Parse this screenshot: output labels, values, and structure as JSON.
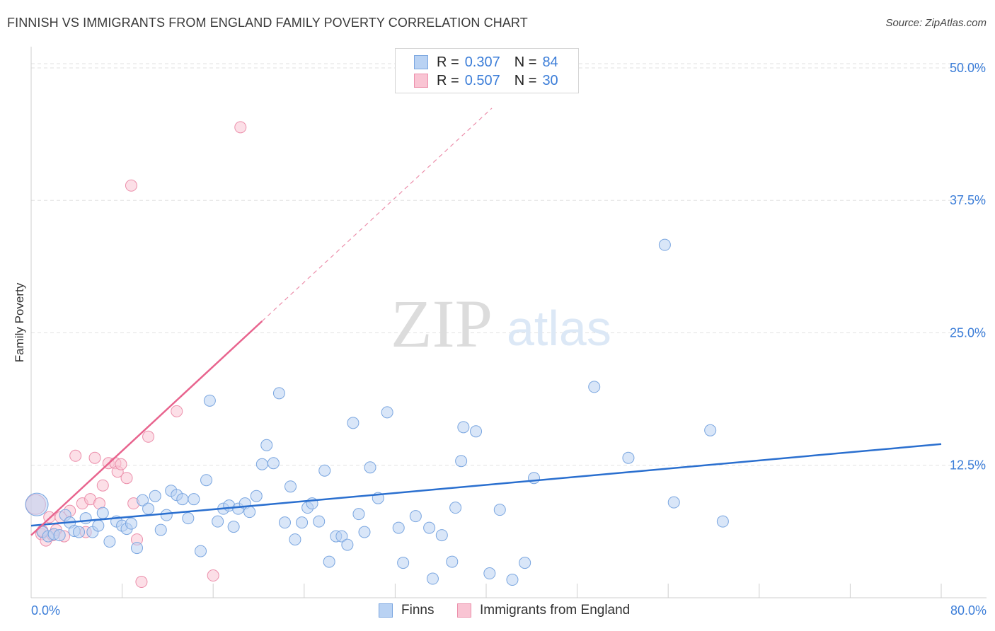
{
  "title": "FINNISH VS IMMIGRANTS FROM ENGLAND FAMILY POVERTY CORRELATION CHART",
  "source": "Source: ZipAtlas.com",
  "watermark": {
    "part1": "ZIP",
    "part2": "atlas"
  },
  "colors": {
    "finns_fill": "#b9d2f3",
    "finns_stroke": "#7aa6e0",
    "finns_line": "#2a6fcf",
    "eng_fill": "#f9c4d3",
    "eng_stroke": "#ec8fab",
    "eng_line": "#e8648e",
    "grid": "#e2e2e2",
    "axis_text": "#3b7dd8"
  },
  "legend": {
    "rows": [
      {
        "r_label": "R =",
        "r_value": "0.307",
        "n_label": "N =",
        "n_value": "84"
      },
      {
        "r_label": "R =",
        "r_value": "0.507",
        "n_label": "N =",
        "n_value": "30"
      }
    ]
  },
  "bottom_legend": {
    "finns": "Finns",
    "england": "Immigrants from England"
  },
  "chart_data": {
    "type": "scatter",
    "title": "FINNISH VS IMMIGRANTS FROM ENGLAND FAMILY POVERTY CORRELATION CHART",
    "xlabel": "",
    "ylabel": "Family Poverty",
    "xlim": [
      0,
      80
    ],
    "ylim": [
      0,
      50
    ],
    "x_tick_labels": [
      "0.0%",
      "80.0%"
    ],
    "y_ticks": [
      12.5,
      25.0,
      37.5,
      50.0
    ],
    "y_tick_labels": [
      "12.5%",
      "25.0%",
      "37.5%",
      "50.0%"
    ],
    "grid": true,
    "series": [
      {
        "name": "Finns",
        "r": 0.307,
        "n": 84,
        "trend": {
          "x": [
            0,
            80
          ],
          "y": [
            6.8,
            14.5
          ]
        },
        "points": [
          [
            0.5,
            8.8,
            16
          ],
          [
            1.0,
            6.2,
            8
          ],
          [
            1.5,
            5.8,
            8
          ],
          [
            2.0,
            6.0,
            8
          ],
          [
            2.5,
            5.9,
            8
          ],
          [
            3.0,
            7.8,
            8
          ],
          [
            3.4,
            7.1,
            8
          ],
          [
            3.8,
            6.3,
            8
          ],
          [
            4.2,
            6.2,
            8
          ],
          [
            4.8,
            7.5,
            8
          ],
          [
            5.4,
            6.2,
            8
          ],
          [
            5.9,
            6.8,
            8
          ],
          [
            6.3,
            8.0,
            8
          ],
          [
            6.9,
            5.3,
            8
          ],
          [
            7.5,
            7.2,
            8
          ],
          [
            8.0,
            6.8,
            8
          ],
          [
            8.4,
            6.5,
            8
          ],
          [
            8.8,
            7.0,
            8
          ],
          [
            9.3,
            4.7,
            8
          ],
          [
            9.8,
            9.2,
            8
          ],
          [
            10.3,
            8.4,
            8
          ],
          [
            10.9,
            9.6,
            8
          ],
          [
            11.4,
            6.4,
            8
          ],
          [
            11.9,
            7.8,
            8
          ],
          [
            12.3,
            10.1,
            8
          ],
          [
            12.8,
            9.7,
            8
          ],
          [
            13.3,
            9.3,
            8
          ],
          [
            13.8,
            7.5,
            8
          ],
          [
            14.3,
            9.3,
            8
          ],
          [
            14.9,
            4.4,
            8
          ],
          [
            15.4,
            11.1,
            8
          ],
          [
            15.7,
            18.6,
            8
          ],
          [
            16.4,
            7.2,
            8
          ],
          [
            16.9,
            8.4,
            8
          ],
          [
            17.4,
            8.7,
            8
          ],
          [
            17.8,
            6.7,
            8
          ],
          [
            18.2,
            8.4,
            8
          ],
          [
            18.8,
            8.9,
            8
          ],
          [
            19.2,
            8.1,
            8
          ],
          [
            19.8,
            9.6,
            8
          ],
          [
            20.3,
            12.6,
            8
          ],
          [
            20.7,
            14.4,
            8
          ],
          [
            21.3,
            12.7,
            8
          ],
          [
            21.8,
            19.3,
            8
          ],
          [
            22.3,
            7.1,
            8
          ],
          [
            22.8,
            10.5,
            8
          ],
          [
            23.2,
            5.5,
            8
          ],
          [
            23.8,
            7.1,
            8
          ],
          [
            24.3,
            8.5,
            8
          ],
          [
            24.7,
            8.9,
            8
          ],
          [
            25.3,
            7.2,
            8
          ],
          [
            25.8,
            12.0,
            8
          ],
          [
            26.2,
            3.4,
            8
          ],
          [
            26.8,
            5.8,
            8
          ],
          [
            27.3,
            5.8,
            8
          ],
          [
            27.8,
            5.0,
            8
          ],
          [
            28.3,
            16.5,
            8
          ],
          [
            28.8,
            7.9,
            8
          ],
          [
            29.3,
            6.2,
            8
          ],
          [
            29.8,
            12.3,
            8
          ],
          [
            30.5,
            9.4,
            8
          ],
          [
            31.3,
            17.5,
            8
          ],
          [
            32.3,
            6.6,
            8
          ],
          [
            32.7,
            3.3,
            8
          ],
          [
            33.8,
            7.7,
            8
          ],
          [
            35.0,
            6.6,
            8
          ],
          [
            35.3,
            1.8,
            8
          ],
          [
            36.1,
            5.9,
            8
          ],
          [
            37.0,
            3.4,
            8
          ],
          [
            37.3,
            8.5,
            8
          ],
          [
            37.8,
            12.9,
            8
          ],
          [
            38.0,
            16.1,
            8
          ],
          [
            39.1,
            15.7,
            8
          ],
          [
            40.3,
            2.3,
            8
          ],
          [
            41.2,
            8.3,
            8
          ],
          [
            42.3,
            1.7,
            8
          ],
          [
            43.4,
            3.3,
            8
          ],
          [
            44.2,
            11.3,
            8
          ],
          [
            49.5,
            19.9,
            8
          ],
          [
            52.5,
            13.2,
            8
          ],
          [
            55.7,
            33.3,
            8
          ],
          [
            56.5,
            9.0,
            8
          ],
          [
            59.7,
            15.8,
            8
          ],
          [
            60.8,
            7.2,
            8
          ]
        ]
      },
      {
        "name": "Immigrants from England",
        "r": 0.507,
        "n": 30,
        "trend": {
          "x": [
            0,
            20.3
          ],
          "y": [
            5.9,
            26.1
          ],
          "extended": {
            "x": [
              20.3,
              40.5
            ],
            "y": [
              26.1,
              46.2
            ]
          }
        },
        "points": [
          [
            0.4,
            8.8,
            14
          ],
          [
            0.9,
            6.0,
            8
          ],
          [
            1.0,
            6.3,
            8
          ],
          [
            1.3,
            5.4,
            8
          ],
          [
            1.6,
            7.6,
            8
          ],
          [
            1.9,
            5.9,
            8
          ],
          [
            2.2,
            6.4,
            8
          ],
          [
            2.6,
            7.6,
            8
          ],
          [
            2.9,
            5.8,
            8
          ],
          [
            3.4,
            8.2,
            8
          ],
          [
            3.9,
            13.4,
            8
          ],
          [
            4.5,
            8.9,
            8
          ],
          [
            4.8,
            6.2,
            8
          ],
          [
            5.2,
            9.3,
            8
          ],
          [
            5.6,
            13.2,
            8
          ],
          [
            6.0,
            8.9,
            8
          ],
          [
            6.3,
            10.6,
            8
          ],
          [
            6.8,
            12.7,
            8
          ],
          [
            7.4,
            12.7,
            8
          ],
          [
            7.6,
            11.9,
            8
          ],
          [
            7.9,
            12.6,
            8
          ],
          [
            8.4,
            11.3,
            8
          ],
          [
            8.8,
            38.9,
            8
          ],
          [
            9.0,
            8.9,
            8
          ],
          [
            9.3,
            5.5,
            8
          ],
          [
            9.7,
            1.5,
            8
          ],
          [
            10.3,
            15.2,
            8
          ],
          [
            12.8,
            17.6,
            8
          ],
          [
            16.0,
            2.1,
            8
          ],
          [
            18.4,
            44.4,
            8
          ]
        ]
      }
    ]
  }
}
